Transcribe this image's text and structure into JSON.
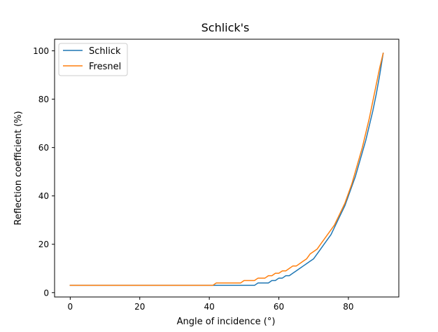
{
  "chart_data": {
    "type": "line",
    "title": "Schlick's",
    "xlabel": "Angle of incidence (°)",
    "ylabel": "Reflection coefficient (%)",
    "xlim": [
      -4.5,
      94.5
    ],
    "ylim": [
      -1.8,
      104.8
    ],
    "xticks": [
      0,
      20,
      40,
      60,
      80
    ],
    "yticks": [
      0,
      20,
      40,
      60,
      80,
      100
    ],
    "grid": false,
    "legend_position": "top-left",
    "series": [
      {
        "name": "Schlick",
        "color": "#1f77b4",
        "x": [
          0,
          40,
          53,
          54,
          56,
          57,
          58,
          59,
          60,
          61,
          62,
          63,
          64,
          65,
          66,
          67,
          68,
          69,
          70,
          71,
          72,
          73,
          74,
          75,
          76,
          77,
          78,
          79,
          80,
          81,
          82,
          83,
          84,
          85,
          86,
          87,
          88,
          89,
          90
        ],
        "y": [
          3,
          3,
          3,
          4,
          4,
          4,
          5,
          5,
          6,
          6,
          7,
          7,
          8,
          9,
          10,
          11,
          12,
          13,
          14,
          16,
          18,
          20,
          22,
          24,
          27,
          30,
          33,
          36,
          40,
          44,
          48,
          53,
          58,
          63,
          69,
          75,
          82,
          90,
          99
        ]
      },
      {
        "name": "Fresnel",
        "color": "#ff7f0e",
        "x": [
          0,
          41,
          42,
          49,
          50,
          53,
          54,
          56,
          57,
          58,
          59,
          60,
          61,
          62,
          63,
          64,
          65,
          66,
          67,
          68,
          69,
          70,
          71,
          72,
          73,
          74,
          75,
          76,
          77,
          78,
          79,
          80,
          81,
          82,
          83,
          84,
          85,
          86,
          87,
          88,
          89,
          90
        ],
        "y": [
          3,
          3,
          4,
          4,
          5,
          5,
          6,
          6,
          7,
          7,
          8,
          8,
          9,
          9,
          10,
          11,
          11,
          12,
          13,
          14,
          16,
          17,
          18,
          20,
          22,
          24,
          26,
          28,
          31,
          34,
          37,
          41,
          45,
          50,
          55,
          60,
          66,
          72,
          79,
          86,
          93,
          99
        ]
      }
    ]
  }
}
